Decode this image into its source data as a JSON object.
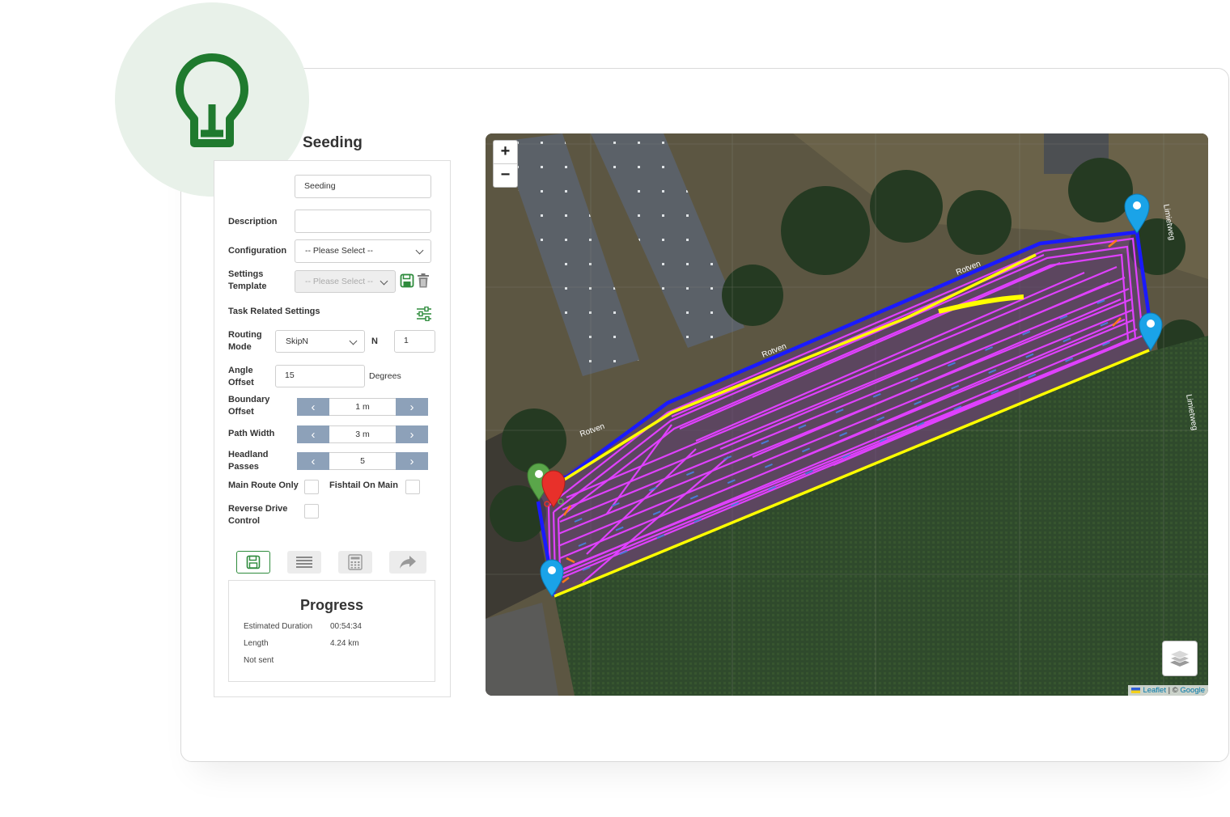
{
  "page_title": "Seeding",
  "form": {
    "name_value": "Seeding",
    "description_label": "Description",
    "description_value": "",
    "configuration_label": "Configuration",
    "configuration_value": "-- Please Select --",
    "settings_template_label_1": "Settings",
    "settings_template_label_2": "Template",
    "settings_template_value": "-- Please Select --",
    "task_related_label": "Task Related Settings",
    "routing_mode_label_1": "Routing",
    "routing_mode_label_2": "Mode",
    "routing_mode_value": "SkipN",
    "n_label": "N",
    "n_value": "1",
    "angle_offset_label_1": "Angle",
    "angle_offset_label_2": "Offset",
    "angle_offset_value": "15",
    "angle_unit": "Degrees",
    "boundary_offset_label_1": "Boundary",
    "boundary_offset_label_2": "Offset",
    "boundary_offset_value": "1 m",
    "path_width_label": "Path Width",
    "path_width_value": "3 m",
    "headland_label_1": "Headland",
    "headland_label_2": "Passes",
    "headland_value": "5",
    "main_route_label": "Main Route Only",
    "fishtail_label": "Fishtail On Main",
    "reverse_drive_label_1": "Reverse Drive",
    "reverse_drive_label_2": "Control"
  },
  "progress": {
    "title": "Progress",
    "duration_label": "Estimated Duration",
    "duration_value": "00:54:34",
    "length_label": "Length",
    "length_value": "4.24 km",
    "status": "Not sent"
  },
  "map": {
    "zoom_in": "+",
    "zoom_out": "−",
    "road_labels": [
      "Rotven",
      "Rotven",
      "Rotven",
      "Limietweg",
      "Limietweg"
    ],
    "attribution_leaflet": "Leaflet",
    "attribution_sep": " | © ",
    "attribution_google": "Google"
  },
  "colors": {
    "accent": "#2e8b3c",
    "boundary": "#1a1aff",
    "headland": "#ffff00",
    "paths": "#e040ff",
    "marker_blue": "#1aa3e8",
    "marker_green": "#5aa64a",
    "marker_red": "#e8302a"
  },
  "icons": [
    "lightbulb-icon",
    "save-icon",
    "trash-icon",
    "sliders-icon",
    "list-icon",
    "calculator-icon",
    "share-icon",
    "layers-icon"
  ]
}
